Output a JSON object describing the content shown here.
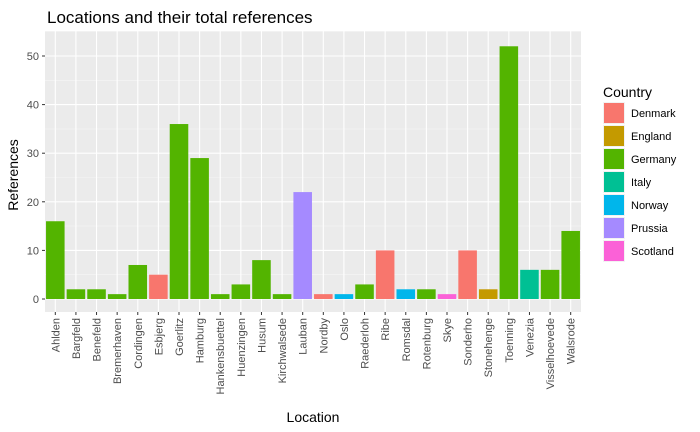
{
  "chart_data": {
    "type": "bar",
    "title": "Locations and their total references",
    "xlabel": "Location",
    "ylabel": "References",
    "ylim": [
      0,
      55
    ],
    "yticks": [
      0,
      10,
      20,
      30,
      40,
      50
    ],
    "grid": true,
    "legend": {
      "title": "Country",
      "position": "right",
      "entries": [
        {
          "name": "Denmark",
          "color": "#F8766D"
        },
        {
          "name": "England",
          "color": "#C49A00"
        },
        {
          "name": "Germany",
          "color": "#53B400"
        },
        {
          "name": "Italy",
          "color": "#00C094"
        },
        {
          "name": "Norway",
          "color": "#00B6EB"
        },
        {
          "name": "Prussia",
          "color": "#A58AFF"
        },
        {
          "name": "Scotland",
          "color": "#FB61D7"
        }
      ]
    },
    "categories": [
      "Ahlden",
      "Bargfeld",
      "Benefeld",
      "Bremerhaven",
      "Cordingen",
      "Esbjerg",
      "Goerlitz",
      "Hamburg",
      "Hankensbuettel",
      "Huenzingen",
      "Husum",
      "Kirchwalsede",
      "Lauban",
      "Nordby",
      "Oslo",
      "Raederloh",
      "Ribe",
      "Romsdal",
      "Rotenburg",
      "Skye",
      "Sonderho",
      "Stonehenge",
      "Toenning",
      "Venezia",
      "Visselhoevede",
      "Walsrode"
    ],
    "values": [
      16,
      2,
      2,
      1,
      7,
      5,
      36,
      29,
      1,
      3,
      8,
      1,
      22,
      1,
      1,
      3,
      10,
      2,
      2,
      1,
      10,
      2,
      52,
      6,
      6,
      14
    ],
    "country": [
      "Germany",
      "Germany",
      "Germany",
      "Germany",
      "Germany",
      "Denmark",
      "Germany",
      "Germany",
      "Germany",
      "Germany",
      "Germany",
      "Germany",
      "Prussia",
      "Denmark",
      "Norway",
      "Germany",
      "Denmark",
      "Norway",
      "Germany",
      "Scotland",
      "Denmark",
      "England",
      "Germany",
      "Italy",
      "Germany",
      "Germany"
    ]
  }
}
